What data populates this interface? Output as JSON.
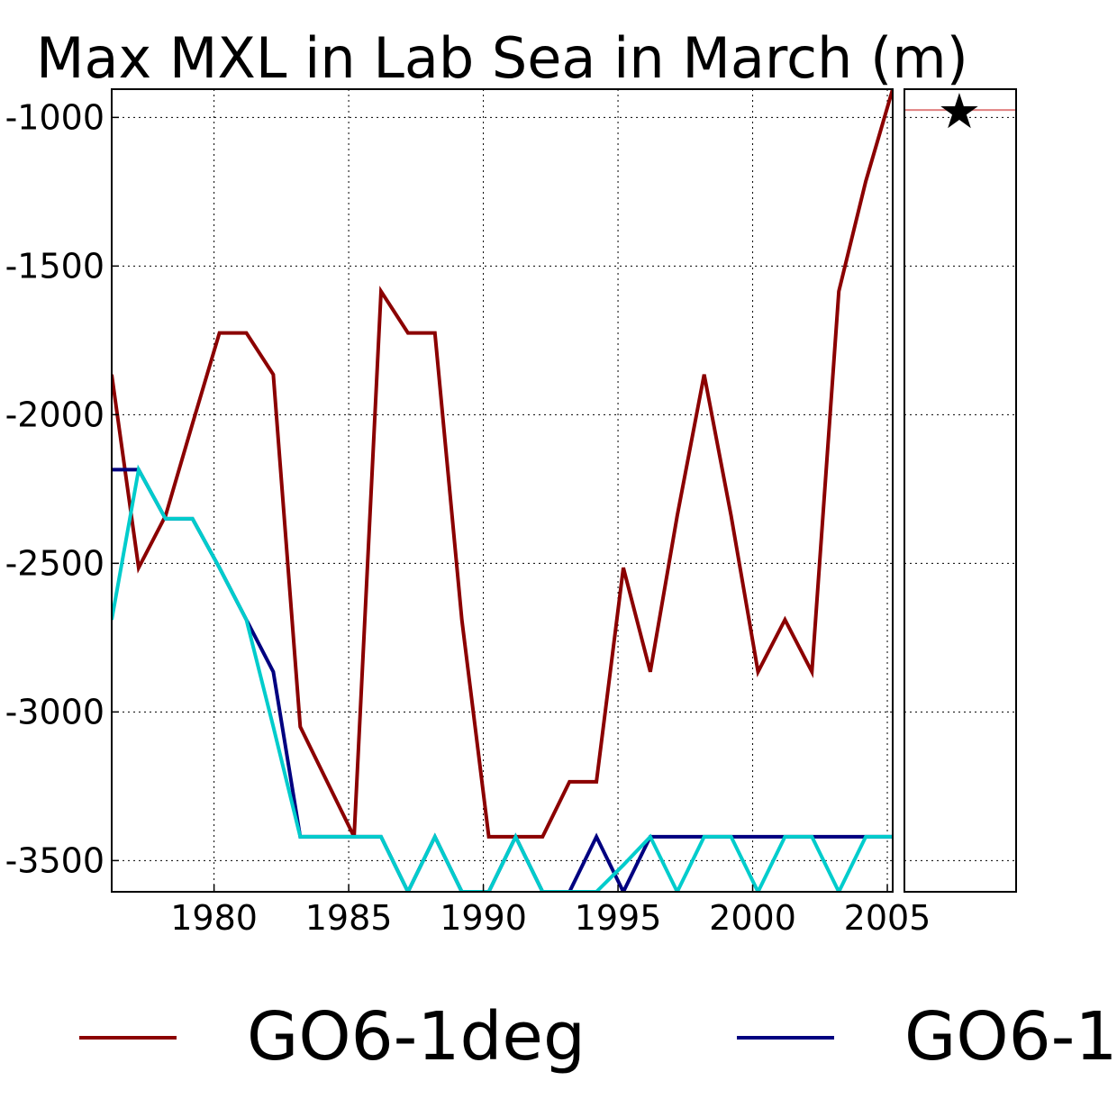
{
  "chart_data": {
    "type": "line",
    "title": "Max MXL in Lab Sea in March (m)",
    "xlabel": "",
    "ylabel": "",
    "xlim": [
      1976.2,
      2005.2
    ],
    "ylim": [
      -3605,
      -905
    ],
    "xticks": [
      1980,
      1985,
      1990,
      1995,
      2000,
      2005
    ],
    "yticks": [
      -1000,
      -1500,
      -2000,
      -2500,
      -3000,
      -3500
    ],
    "grid": true,
    "x": [
      1976.2,
      1977.2,
      1978.2,
      1979.2,
      1980.2,
      1981.2,
      1982.2,
      1983.2,
      1984.2,
      1985.2,
      1986.2,
      1987.2,
      1988.2,
      1989.2,
      1990.2,
      1991.2,
      1992.2,
      1993.2,
      1994.2,
      1995.2,
      1996.2,
      1997.2,
      1998.2,
      1999.2,
      2000.2,
      2001.2,
      2002.2,
      2003.2,
      2004.2,
      2005.2
    ],
    "series": [
      {
        "name": "GO6-1deg",
        "color": "#8b0000",
        "values": [
          -1865,
          -2515,
          -2340,
          -2030,
          -1725,
          -1725,
          -1865,
          -3050,
          -3235,
          -3420,
          -1585,
          -1725,
          -1725,
          -2690,
          -3420,
          -3420,
          -3420,
          -3235,
          -3235,
          -2515,
          -2865,
          -2340,
          -1865,
          -2340,
          -2865,
          -2690,
          -2865,
          -1585,
          -1215,
          -905
        ]
      },
      {
        "name": "GO6-1",
        "color": "#000080",
        "values": [
          -2185,
          -2185,
          -2350,
          -2350,
          -2515,
          -2690,
          -2865,
          -3420,
          -3420,
          -3420,
          -3420,
          -3605,
          -3420,
          -3605,
          -3605,
          -3420,
          -3605,
          -3605,
          -3420,
          -3605,
          -3420,
          -3420,
          -3420,
          -3420,
          -3420,
          -3420,
          -3420,
          -3420,
          -3420,
          -3420
        ]
      },
      {
        "name": "",
        "color": "#00cccc",
        "values": [
          -2690,
          -2185,
          -2350,
          -2350,
          -2515,
          -2690,
          -3050,
          -3420,
          -3420,
          -3420,
          -3420,
          -3605,
          -3420,
          -3605,
          -3605,
          -3420,
          -3605,
          -3605,
          -3605,
          -3515,
          -3420,
          -3605,
          -3420,
          -3420,
          -3605,
          -3420,
          -3420,
          -3605,
          -3420,
          -3420
        ]
      }
    ],
    "side_panel": {
      "reference_line_value": -975,
      "reference_line_color": "#e08080",
      "marker_value": -975,
      "marker_symbol": "★"
    },
    "legend": {
      "placement": "bottom",
      "entries": [
        {
          "label": "GO6-1deg",
          "color": "#8b0000"
        },
        {
          "label": "GO6-1",
          "color": "#000080"
        }
      ]
    }
  }
}
